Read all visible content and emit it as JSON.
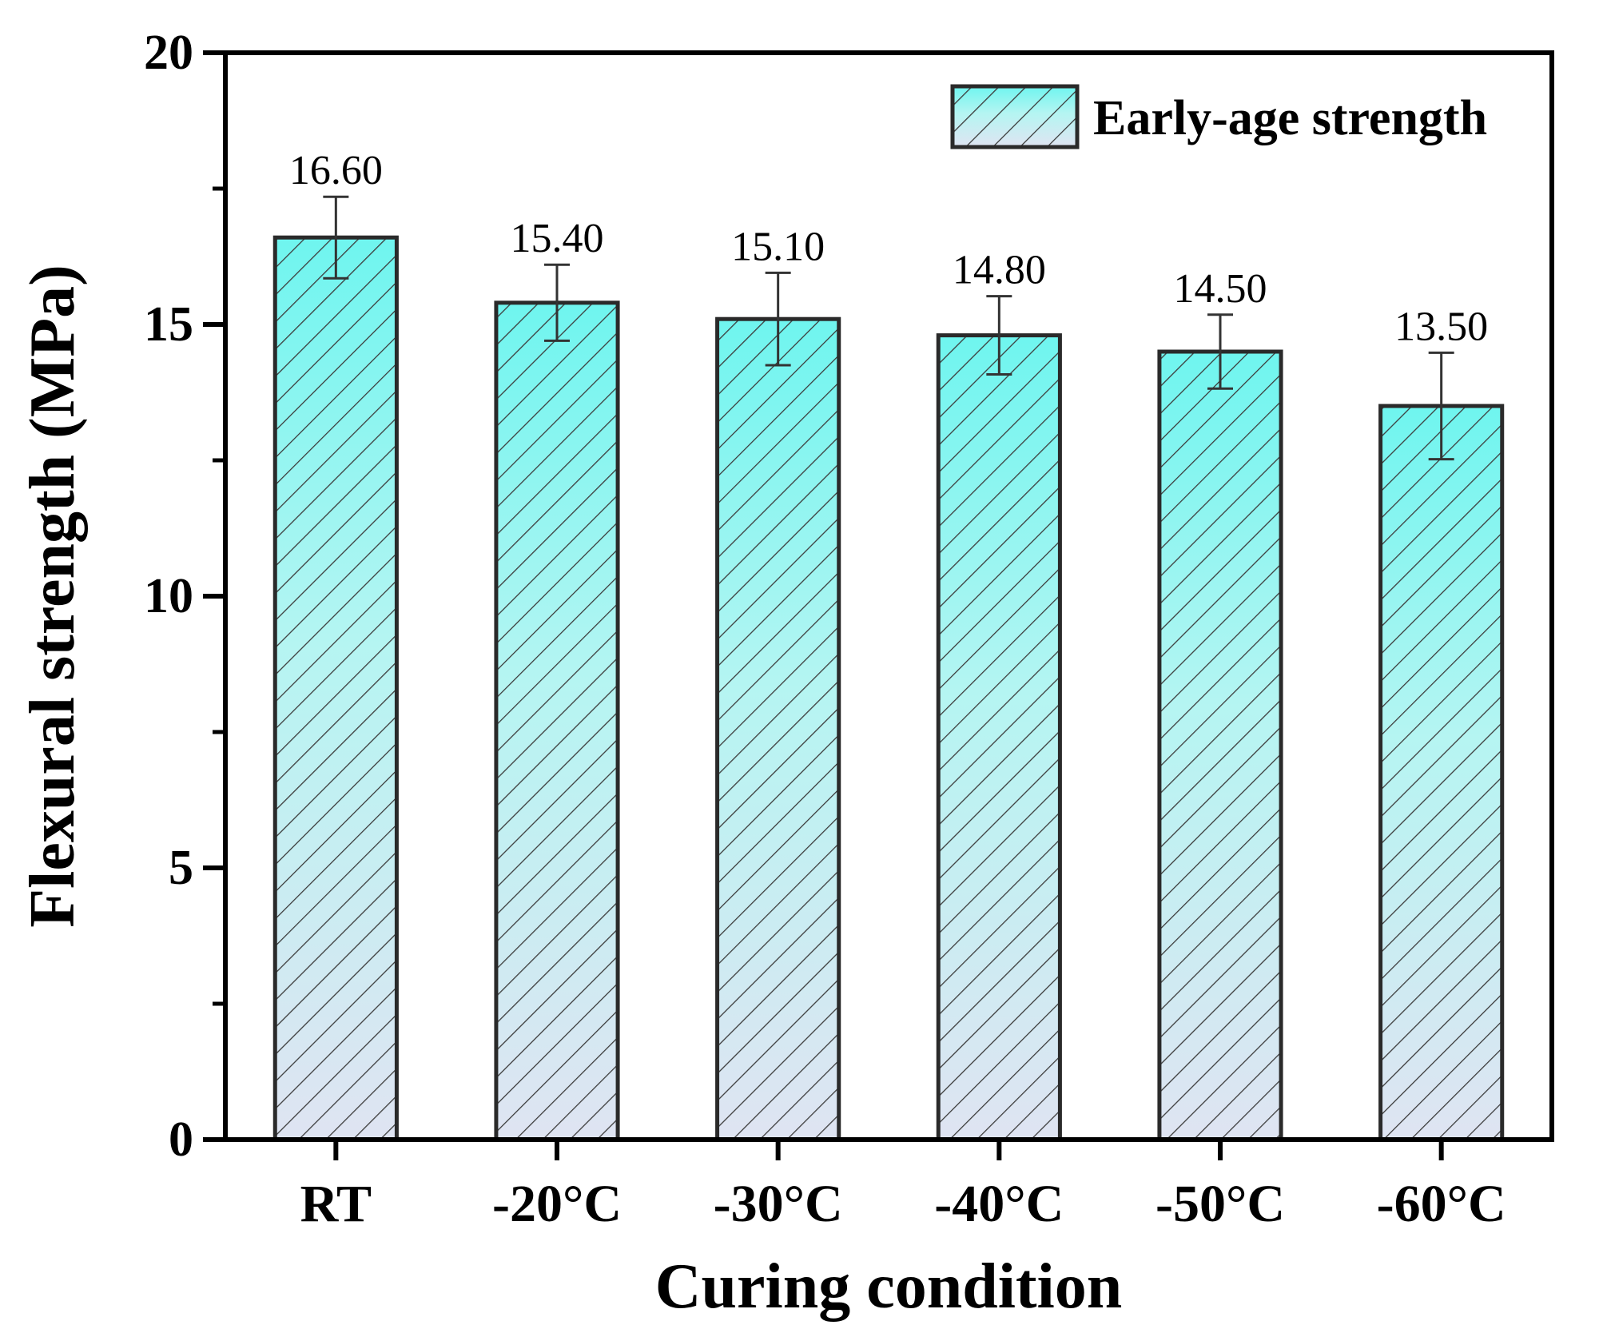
{
  "chart_data": {
    "type": "bar",
    "categories": [
      "RT",
      "-20°C",
      "-30°C",
      "-40°C",
      "-50°C",
      "-60°C"
    ],
    "series": [
      {
        "name": "Early-age strength",
        "values": [
          16.6,
          15.4,
          15.1,
          14.8,
          14.5,
          13.5
        ],
        "errors": [
          0.75,
          0.7,
          0.85,
          0.72,
          0.68,
          0.98
        ],
        "value_labels": [
          "16.60",
          "15.40",
          "15.10",
          "14.80",
          "14.50",
          "13.50"
        ]
      }
    ],
    "xlabel": "Curing condition",
    "ylabel": "Flexural strength (MPa)",
    "ylim": [
      0,
      20
    ],
    "yticks": [
      0,
      5,
      10,
      15,
      20
    ],
    "yticks_minor": [
      2.5,
      7.5,
      12.5,
      17.5
    ],
    "grid": false,
    "legend_position": "top-right",
    "colors": {
      "bar_top": "#6ff5ef",
      "bar_bottom": "#dfe4f2",
      "hatch": "#3c3c3c",
      "outline": "#2a2a2a",
      "axis": "#000000"
    }
  }
}
